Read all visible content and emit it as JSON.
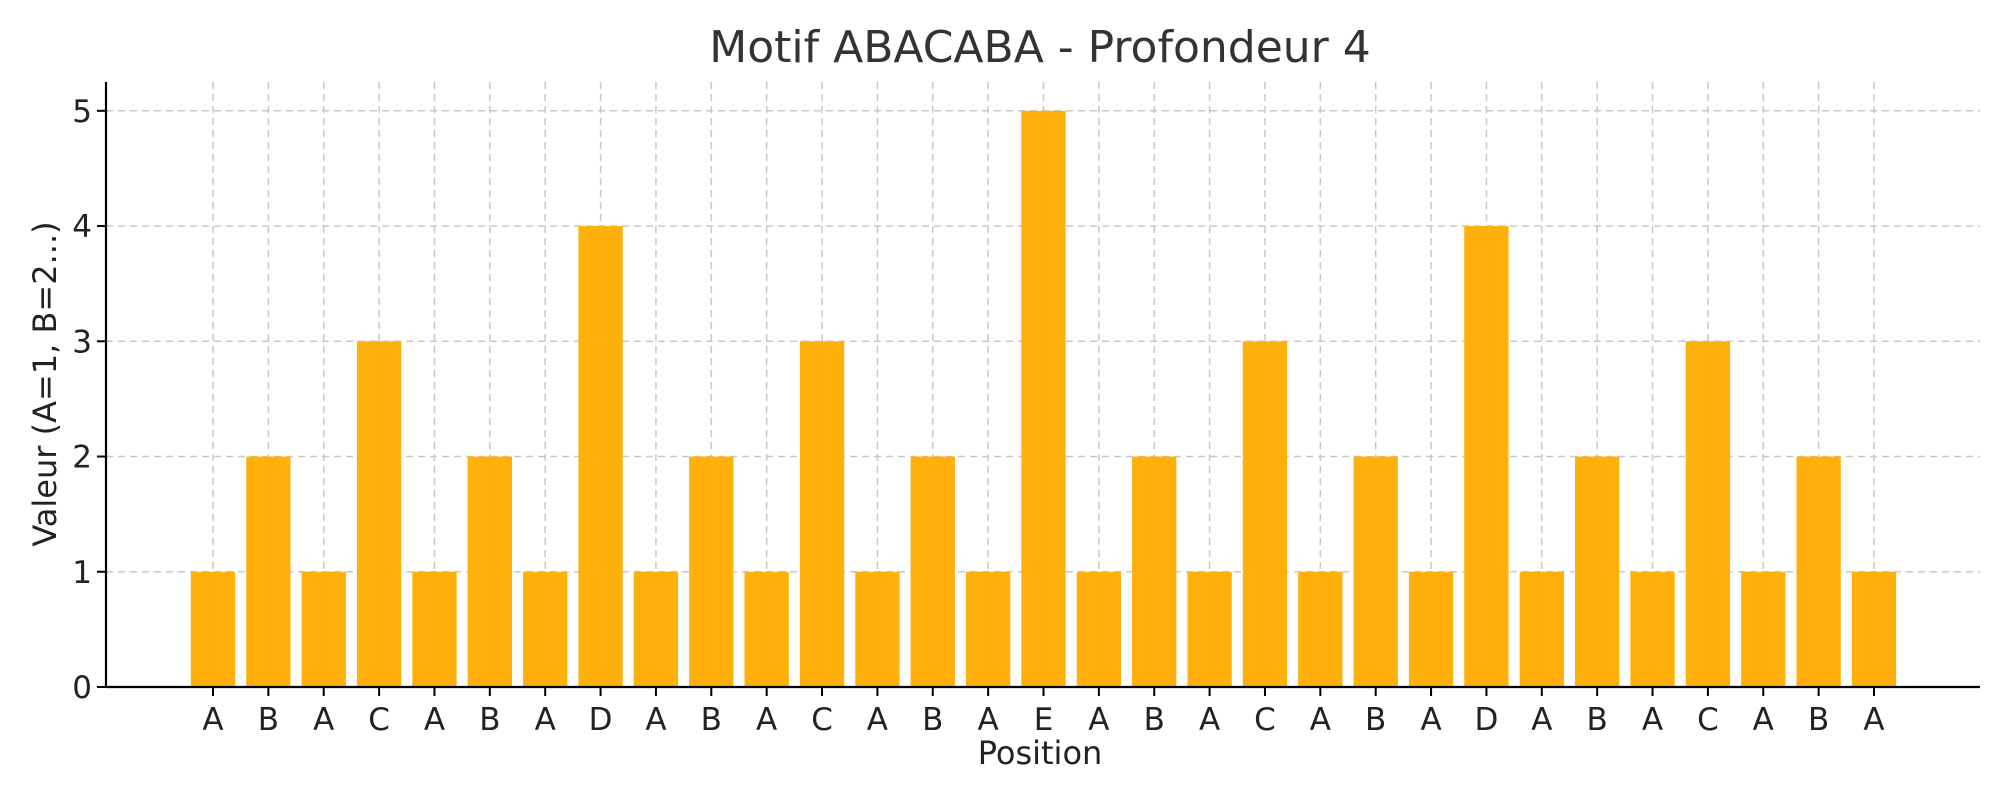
{
  "chart_data": {
    "type": "bar",
    "title": "Motif ABACABA - Profondeur 4",
    "xlabel": "Position",
    "ylabel": "Valeur (A=1, B=2...)",
    "categories": [
      "A",
      "B",
      "A",
      "C",
      "A",
      "B",
      "A",
      "D",
      "A",
      "B",
      "A",
      "C",
      "A",
      "B",
      "A",
      "E",
      "A",
      "B",
      "A",
      "C",
      "A",
      "B",
      "A",
      "D",
      "A",
      "B",
      "A",
      "C",
      "A",
      "B",
      "A"
    ],
    "values": [
      1,
      2,
      1,
      3,
      1,
      2,
      1,
      4,
      1,
      2,
      1,
      3,
      1,
      2,
      1,
      5,
      1,
      2,
      1,
      3,
      1,
      2,
      1,
      4,
      1,
      2,
      1,
      3,
      1,
      2,
      1
    ],
    "ylim": [
      0,
      5.25
    ],
    "yticks": [
      "0",
      "1",
      "2",
      "3",
      "4",
      "5"
    ],
    "grid": true,
    "bar_color": "#FFB00A"
  }
}
